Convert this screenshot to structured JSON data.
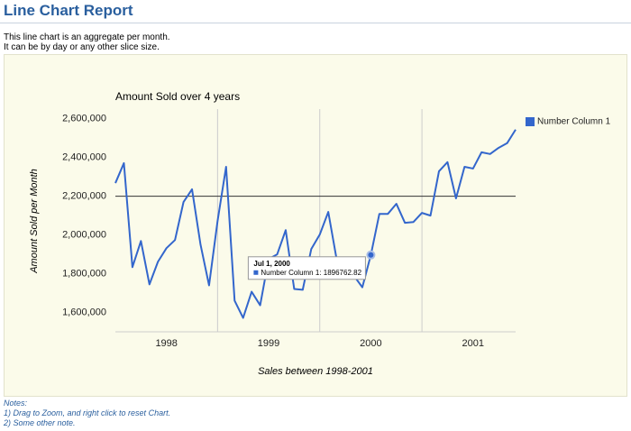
{
  "header": {
    "title": "Line Chart Report"
  },
  "description": [
    "This line chart is an aggregate per month.",
    "It can be by day or any other slice size."
  ],
  "chart_data": {
    "type": "line",
    "title": "Amount Sold over 4 years",
    "x_label": "Sales between 1998-2001",
    "y_label": "Amount Sold per Month",
    "x": [
      "1998-01",
      "1998-02",
      "1998-03",
      "1998-04",
      "1998-05",
      "1998-06",
      "1998-07",
      "1998-08",
      "1998-09",
      "1998-10",
      "1998-11",
      "1998-12",
      "1999-01",
      "1999-02",
      "1999-03",
      "1999-04",
      "1999-05",
      "1999-06",
      "1999-07",
      "1999-08",
      "1999-09",
      "1999-10",
      "1999-11",
      "1999-12",
      "2000-01",
      "2000-02",
      "2000-03",
      "2000-04",
      "2000-05",
      "2000-06",
      "2000-07",
      "2000-08",
      "2000-09",
      "2000-10",
      "2000-11",
      "2000-12",
      "2001-01",
      "2001-02",
      "2001-03",
      "2001-04",
      "2001-05",
      "2001-06",
      "2001-07",
      "2001-08",
      "2001-09",
      "2001-10",
      "2001-11",
      "2001-12"
    ],
    "series": [
      {
        "name": "Number Column 1",
        "color": "#3366cc",
        "values": [
          2268000,
          2371000,
          1834000,
          1969000,
          1745000,
          1862000,
          1932000,
          1974000,
          2170000,
          2236000,
          1950000,
          1740000,
          2072000,
          2352000,
          1661000,
          1572000,
          1707000,
          1637000,
          1876000,
          1900000,
          2025000,
          1721000,
          1717000,
          1927000,
          2002000,
          2119000,
          1870000,
          1815000,
          1790000,
          1730000,
          1896762.82,
          2109000,
          2109000,
          2161000,
          2063000,
          2067000,
          2114000,
          2100000,
          2329000,
          2376000,
          2189000,
          2352000,
          2343000,
          2427000,
          2418000,
          2450000,
          2474000,
          2544000
        ]
      }
    ],
    "xlim": [
      "1998-01",
      "2001-12"
    ],
    "xticks": [
      {
        "value": "1998-07",
        "label": "1998"
      },
      {
        "value": "1999-07",
        "label": "1999"
      },
      {
        "value": "2000-07",
        "label": "2000"
      },
      {
        "value": "2001-07",
        "label": "2001"
      }
    ],
    "xgrid": [
      "1999-01",
      "2000-01",
      "2001-01"
    ],
    "ylim": [
      1500000,
      2650000
    ],
    "yticks": [
      {
        "value": 1600000,
        "label": "1,600,000"
      },
      {
        "value": 1800000,
        "label": "1,800,000"
      },
      {
        "value": 2000000,
        "label": "2,000,000"
      },
      {
        "value": 2200000,
        "label": "2,200,000"
      },
      {
        "value": 2400000,
        "label": "2,400,000"
      },
      {
        "value": 2600000,
        "label": "2,600,000"
      }
    ],
    "baseline": 2200000,
    "legend": "right",
    "tooltip": {
      "x": "2000-07",
      "title": "Jul 1, 2000",
      "text": "Number Column 1: 1896762.82"
    }
  },
  "notes": {
    "title": "Notes:",
    "items": [
      "1) Drag to Zoom, and right click to reset Chart.",
      "2) Some other note."
    ]
  }
}
